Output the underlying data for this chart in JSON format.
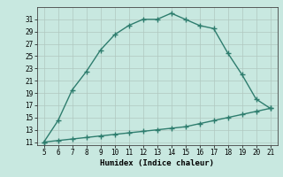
{
  "xlabel": "Humidex (Indice chaleur)",
  "x": [
    5,
    6,
    7,
    8,
    9,
    10,
    11,
    12,
    13,
    14,
    15,
    16,
    17,
    18,
    19,
    20,
    21
  ],
  "y_curve": [
    11,
    14.5,
    19.5,
    22.5,
    26,
    28.5,
    30,
    31,
    31,
    32,
    31,
    30,
    29.5,
    25.5,
    22,
    18,
    16.5
  ],
  "y_line": [
    11,
    11.25,
    11.5,
    11.75,
    12,
    12.25,
    12.5,
    12.75,
    13,
    13.25,
    13.5,
    14,
    14.5,
    15,
    15.5,
    16,
    16.5
  ],
  "xlim": [
    4.5,
    21.5
  ],
  "ylim": [
    10.5,
    33
  ],
  "xticks": [
    5,
    6,
    7,
    8,
    9,
    10,
    11,
    12,
    13,
    14,
    15,
    16,
    17,
    18,
    19,
    20,
    21
  ],
  "yticks": [
    11,
    13,
    15,
    17,
    19,
    21,
    23,
    25,
    27,
    29,
    31
  ],
  "line_color": "#2e7d6e",
  "bg_color": "#c8e8e0",
  "grid_color": "#b0c8c0",
  "marker": "+",
  "markersize": 4,
  "linewidth": 1.0
}
